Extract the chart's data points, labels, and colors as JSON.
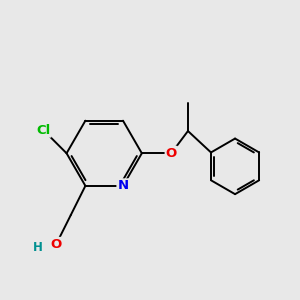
{
  "background_color": "#e8e8e8",
  "bond_color": "#000000",
  "atom_colors": {
    "N": "#0000ee",
    "O": "#ee0000",
    "Cl": "#00bb00",
    "H": "#009090",
    "C": "#000000"
  },
  "figsize": [
    3.0,
    3.0
  ],
  "dpi": 100
}
